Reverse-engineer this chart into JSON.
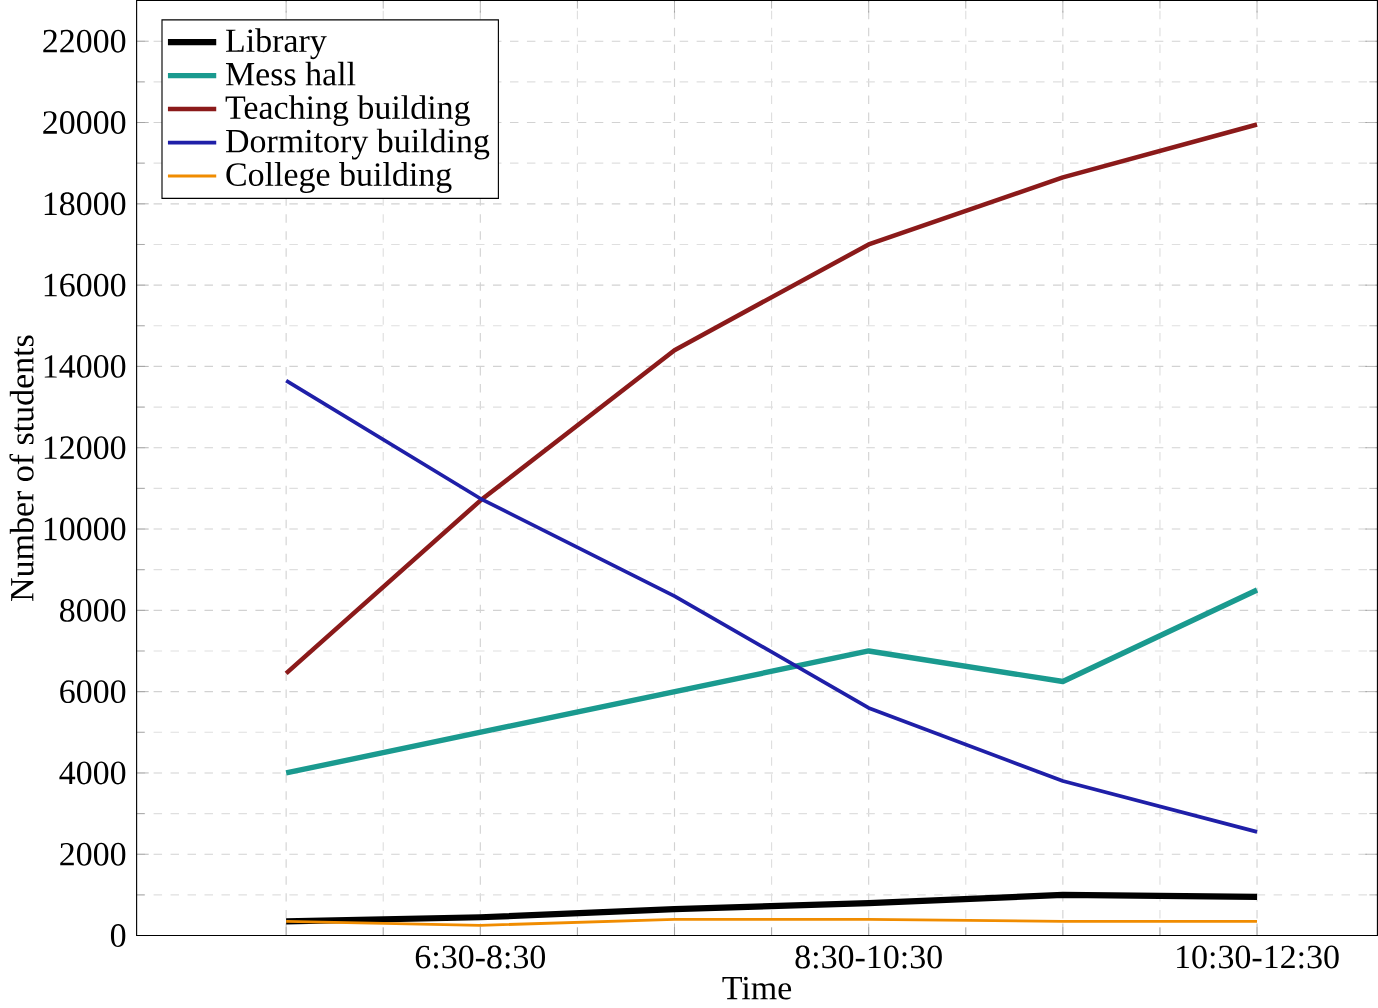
{
  "chart_data": {
    "type": "line",
    "xlabel": "Time",
    "ylabel": "Number of students",
    "categories": [
      null,
      "6:30-8:30",
      null,
      "8:30-10:30",
      null,
      "10:30-12:30"
    ],
    "series": [
      {
        "name": "Library",
        "color": "#000000",
        "values": [
          350,
          450,
          650,
          800,
          1000,
          950
        ]
      },
      {
        "name": "Mess hall",
        "color": "#1a9a8f",
        "values": [
          4000,
          5000,
          6000,
          7000,
          6250,
          8500
        ]
      },
      {
        "name": "Teaching building",
        "color": "#8b1a1a",
        "values": [
          6450,
          10700,
          14400,
          17000,
          18650,
          19950
        ]
      },
      {
        "name": "Dormitory building",
        "color": "#1f1fa8",
        "values": [
          13650,
          10750,
          8350,
          5600,
          3800,
          2550
        ]
      },
      {
        "name": "College building",
        "color": "#f08c00",
        "values": [
          350,
          250,
          400,
          400,
          350,
          350
        ]
      }
    ],
    "ylim": [
      0,
      23000
    ],
    "yticks": [
      0,
      2000,
      4000,
      6000,
      8000,
      10000,
      12000,
      14000,
      16000,
      18000,
      20000,
      22000
    ],
    "grid": true,
    "legend": "top left",
    "marker": "none",
    "line_style": "solid"
  }
}
